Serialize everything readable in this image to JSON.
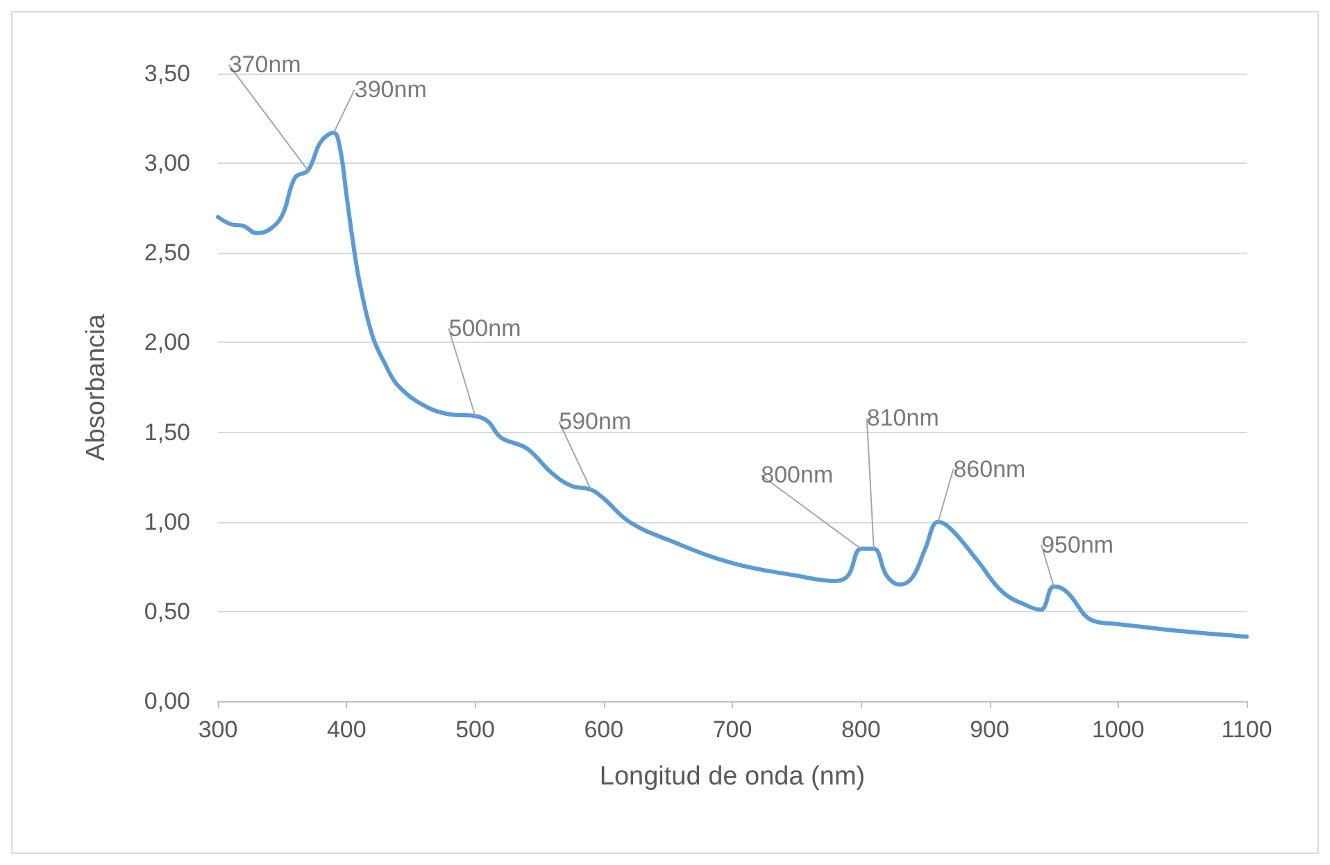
{
  "chart_data": {
    "type": "line",
    "xlabel": "Longitud de onda (nm)",
    "ylabel": "Absorbancia",
    "x": [
      300,
      310,
      320,
      330,
      340,
      350,
      360,
      370,
      380,
      390,
      395,
      400,
      405,
      410,
      420,
      430,
      440,
      460,
      480,
      500,
      510,
      520,
      540,
      560,
      575,
      590,
      600,
      620,
      650,
      700,
      750,
      780,
      790,
      800,
      810,
      820,
      830,
      840,
      850,
      860,
      870,
      890,
      910,
      930,
      940,
      950,
      960,
      980,
      1000,
      1050,
      1100
    ],
    "series": [
      {
        "color": "#5b9bd5",
        "values": [
          2.7,
          2.66,
          2.65,
          2.61,
          2.63,
          2.71,
          2.92,
          2.96,
          3.12,
          3.17,
          3.08,
          2.82,
          2.56,
          2.34,
          2.04,
          1.88,
          1.76,
          1.65,
          1.6,
          1.59,
          1.56,
          1.47,
          1.41,
          1.27,
          1.2,
          1.18,
          1.13,
          1.0,
          0.9,
          0.77,
          0.7,
          0.67,
          0.7,
          0.85,
          0.85,
          0.7,
          0.65,
          0.69,
          0.85,
          1.0,
          0.96,
          0.79,
          0.61,
          0.53,
          0.51,
          0.64,
          0.61,
          0.45,
          0.43,
          0.39,
          0.36
        ]
      }
    ],
    "xlim": [
      300,
      1100
    ],
    "xticks": [
      300,
      400,
      500,
      600,
      700,
      800,
      900,
      1000,
      1100
    ],
    "ylim": [
      0,
      3.5
    ],
    "yticks": [
      {
        "value": 0,
        "label": "0,00"
      },
      {
        "value": 0.5,
        "label": "0,50"
      },
      {
        "value": 1,
        "label": "1,00"
      },
      {
        "value": 1.5,
        "label": "1,50"
      },
      {
        "value": 2,
        "label": "2,00"
      },
      {
        "value": 2.5,
        "label": "2,50"
      },
      {
        "value": 3,
        "label": "3,00"
      },
      {
        "value": 3.5,
        "label": "3,50"
      }
    ],
    "grid": "y",
    "marker": "none",
    "line_style": "solid",
    "annotations": [
      {
        "text": "370nm",
        "x": 370,
        "y": 2.96
      },
      {
        "text": "390nm",
        "x": 390,
        "y": 3.17
      },
      {
        "text": "500nm",
        "x": 500,
        "y": 1.59
      },
      {
        "text": "590nm",
        "x": 590,
        "y": 1.18
      },
      {
        "text": "800nm",
        "x": 800,
        "y": 0.85
      },
      {
        "text": "810nm",
        "x": 810,
        "y": 0.85
      },
      {
        "text": "860nm",
        "x": 860,
        "y": 1.0
      },
      {
        "text": "950nm",
        "x": 950,
        "y": 0.64
      }
    ]
  }
}
